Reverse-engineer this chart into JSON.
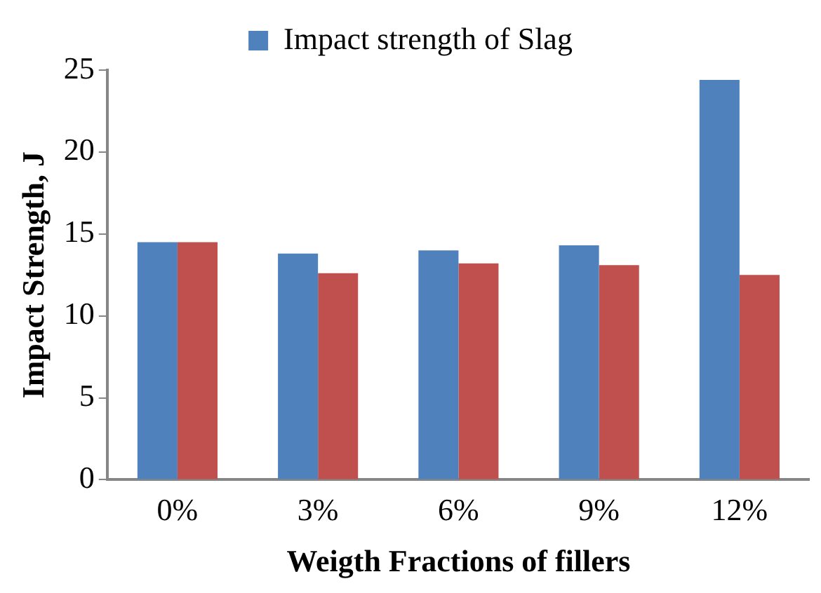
{
  "chart_data": {
    "type": "bar",
    "xlabel": "Weigth Fractions of fillers",
    "ylabel": "Impact Strength, J",
    "categories": [
      "0%",
      "3%",
      "6%",
      "9%",
      "12%"
    ],
    "series": [
      {
        "name": "Impact strength of Slag",
        "color": "#4f81bd",
        "values": [
          14.5,
          13.8,
          14.0,
          14.3,
          24.4
        ]
      },
      {
        "color": "#c0504d",
        "values": [
          14.5,
          12.6,
          13.2,
          13.1,
          12.5
        ]
      }
    ],
    "ylim": [
      0,
      25
    ],
    "yticks": [
      0,
      5,
      10,
      15,
      20,
      25
    ],
    "grid": false,
    "legend": "top"
  }
}
